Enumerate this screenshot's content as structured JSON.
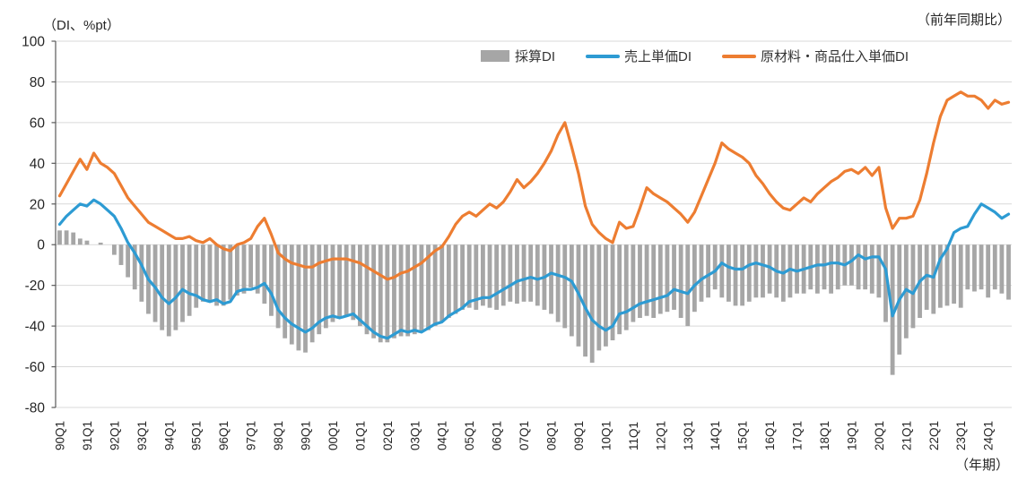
{
  "titles": {
    "y_axis_unit": "（DI、%pt）",
    "top_right_note": "（前年同期比）",
    "x_axis_unit": "（年期）"
  },
  "axes": {
    "y_ticks": [
      100,
      80,
      60,
      40,
      20,
      0,
      -20,
      -40,
      -60,
      -80
    ],
    "grid_color": "#D9D9D9",
    "axis_color": "#595959",
    "label_color": "#262626"
  },
  "chart_data": {
    "type": "combo-bar-line",
    "x_start": "1990Q1",
    "x_end": "2024Q4",
    "x_tick_labels": [
      "90Q1",
      "91Q1",
      "92Q1",
      "93Q1",
      "94Q1",
      "95Q1",
      "96Q1",
      "97Q1",
      "98Q1",
      "99Q1",
      "00Q1",
      "01Q1",
      "02Q1",
      "03Q1",
      "04Q1",
      "05Q1",
      "06Q1",
      "07Q1",
      "08Q1",
      "09Q1",
      "10Q1",
      "11Q1",
      "12Q1",
      "13Q1",
      "14Q1",
      "15Q1",
      "16Q1",
      "17Q1",
      "18Q1",
      "19Q1",
      "20Q1",
      "21Q1",
      "22Q1",
      "23Q1",
      "24Q1"
    ],
    "ylim": [
      -80,
      100
    ],
    "ytick_step": 20,
    "legend_position": "top",
    "grid": true,
    "series": [
      {
        "name": "採算DI",
        "type": "bar",
        "color": "#A6A6A6",
        "values": [
          7,
          7,
          6,
          3,
          2,
          0,
          1,
          0,
          -5,
          -10,
          -16,
          -22,
          -28,
          -34,
          -38,
          -42,
          -45,
          -42,
          -38,
          -35,
          -31,
          -28,
          -28,
          -30,
          -30,
          -27,
          -25,
          -24,
          -21,
          -24,
          -29,
          -35,
          -41,
          -46,
          -49,
          -52,
          -53,
          -48,
          -44,
          -41,
          -38,
          -36,
          -35,
          -37,
          -40,
          -44,
          -46,
          -48,
          -48,
          -46,
          -45,
          -45,
          -44,
          -43,
          -42,
          -40,
          -38,
          -36,
          -34,
          -32,
          -31,
          -32,
          -30,
          -31,
          -32,
          -30,
          -28,
          -29,
          -28,
          -28,
          -30,
          -32,
          -34,
          -38,
          -41,
          -45,
          -50,
          -55,
          -58,
          -52,
          -50,
          -47,
          -44,
          -42,
          -38,
          -36,
          -35,
          -36,
          -34,
          -33,
          -32,
          -36,
          -40,
          -33,
          -28,
          -26,
          -22,
          -26,
          -28,
          -30,
          -30,
          -28,
          -26,
          -26,
          -24,
          -26,
          -28,
          -26,
          -24,
          -24,
          -22,
          -24,
          -22,
          -24,
          -22,
          -20,
          -20,
          -22,
          -22,
          -24,
          -26,
          -38,
          -64,
          -54,
          -46,
          -41,
          -36,
          -32,
          -34,
          -31,
          -30,
          -29,
          -31,
          -22,
          -23,
          -22,
          -26,
          -22,
          -24,
          -27
        ]
      },
      {
        "name": "売上単価DI",
        "type": "line",
        "color": "#2D9BD3",
        "values": [
          10,
          14,
          17,
          20,
          19,
          22,
          20,
          17,
          14,
          8,
          1,
          -4,
          -10,
          -17,
          -21,
          -26,
          -29,
          -26,
          -22,
          -24,
          -25,
          -27,
          -28,
          -27,
          -29,
          -28,
          -23,
          -22,
          -22,
          -21,
          -19,
          -24,
          -32,
          -36,
          -39,
          -41,
          -43,
          -41,
          -38,
          -36,
          -35,
          -36,
          -35,
          -34,
          -37,
          -40,
          -43,
          -45,
          -46,
          -44,
          -42,
          -43,
          -42,
          -43,
          -41,
          -39,
          -38,
          -35,
          -33,
          -31,
          -28,
          -27,
          -26,
          -26,
          -24,
          -22,
          -20,
          -18,
          -17,
          -16,
          -17,
          -16,
          -14,
          -15,
          -16,
          -18,
          -24,
          -31,
          -37,
          -40,
          -42,
          -40,
          -34,
          -33,
          -31,
          -29,
          -28,
          -27,
          -26,
          -25,
          -22,
          -23,
          -24,
          -20,
          -17,
          -15,
          -13,
          -9,
          -11,
          -12,
          -12,
          -10,
          -9,
          -10,
          -11,
          -13,
          -14,
          -12,
          -13,
          -12,
          -11,
          -10,
          -10,
          -9,
          -9,
          -10,
          -8,
          -5,
          -7,
          -6,
          -6,
          -12,
          -35,
          -27,
          -22,
          -24,
          -18,
          -15,
          -16,
          -7,
          -2,
          6,
          8,
          9,
          15,
          20,
          18,
          16,
          13,
          15
        ]
      },
      {
        "name": "原材料・商品仕入単価DI",
        "type": "line",
        "color": "#ED7D31",
        "values": [
          24,
          30,
          36,
          42,
          37,
          45,
          40,
          38,
          35,
          29,
          23,
          19,
          15,
          11,
          9,
          7,
          5,
          3,
          3,
          4,
          2,
          1,
          3,
          0,
          -2,
          -3,
          0,
          1,
          3,
          9,
          13,
          5,
          -4,
          -7,
          -9,
          -10,
          -11,
          -11,
          -9,
          -8,
          -7,
          -7,
          -7,
          -8,
          -9,
          -11,
          -13,
          -15,
          -17,
          -16,
          -14,
          -13,
          -11,
          -9,
          -6,
          -3,
          -1,
          4,
          10,
          14,
          16,
          14,
          17,
          20,
          18,
          21,
          26,
          32,
          28,
          31,
          35,
          40,
          46,
          54,
          60,
          48,
          35,
          19,
          10,
          6,
          3,
          1,
          11,
          8,
          9,
          18,
          28,
          25,
          23,
          21,
          18,
          15,
          11,
          16,
          24,
          32,
          40,
          50,
          47,
          45,
          43,
          40,
          34,
          30,
          25,
          21,
          18,
          17,
          20,
          23,
          21,
          25,
          28,
          31,
          33,
          36,
          37,
          35,
          38,
          34,
          38,
          18,
          8,
          13,
          13,
          14,
          22,
          35,
          50,
          63,
          71,
          73,
          75,
          73,
          73,
          71,
          67,
          71,
          69,
          70
        ]
      }
    ]
  }
}
